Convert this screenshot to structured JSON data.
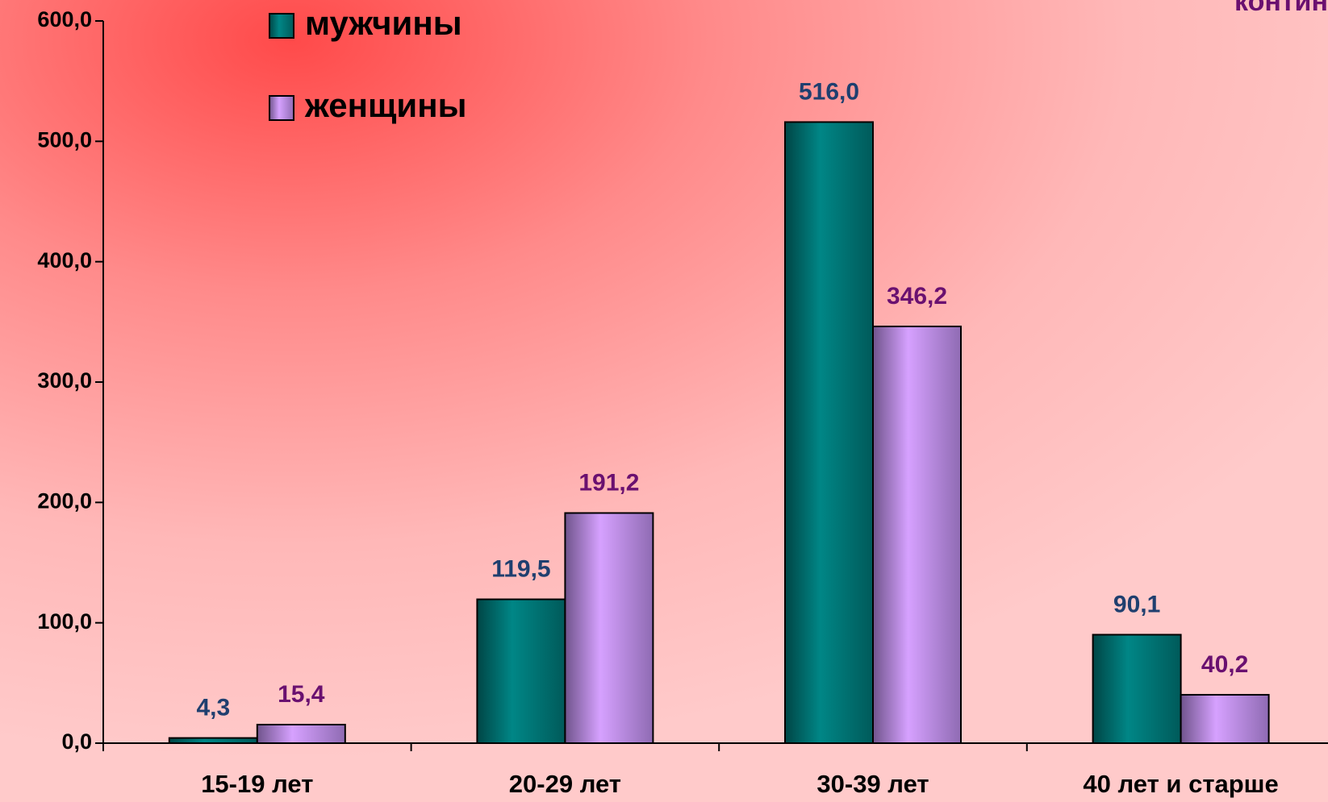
{
  "chart_data": {
    "type": "bar",
    "annotation": "контин",
    "categories": [
      "15-19 лет",
      "20-29 лет",
      "30-39 лет",
      "40 лет и старше"
    ],
    "series": [
      {
        "name": "мужчины",
        "color": "#008080",
        "values": [
          4.3,
          119.5,
          516.0,
          90.1
        ],
        "value_labels": [
          "4,3",
          "119,5",
          "516,0",
          "90,1"
        ],
        "label_color": "#1f3f6f"
      },
      {
        "name": "женщины",
        "color": "#cc99ff",
        "values": [
          15.4,
          191.2,
          346.2,
          40.2
        ],
        "value_labels": [
          "15,4",
          "191,2",
          "346,2",
          "40,2"
        ],
        "label_color": "#6a1070"
      }
    ],
    "ylim": [
      0,
      600
    ],
    "yticks": [
      {
        "value": 0,
        "label": "0,0"
      },
      {
        "value": 100,
        "label": "100,0"
      },
      {
        "value": 200,
        "label": "200,0"
      },
      {
        "value": 300,
        "label": "300,0"
      },
      {
        "value": 400,
        "label": "400,0"
      },
      {
        "value": 500,
        "label": "500,0"
      },
      {
        "value": 600,
        "label": "600,0"
      }
    ],
    "legend": "top-left"
  }
}
